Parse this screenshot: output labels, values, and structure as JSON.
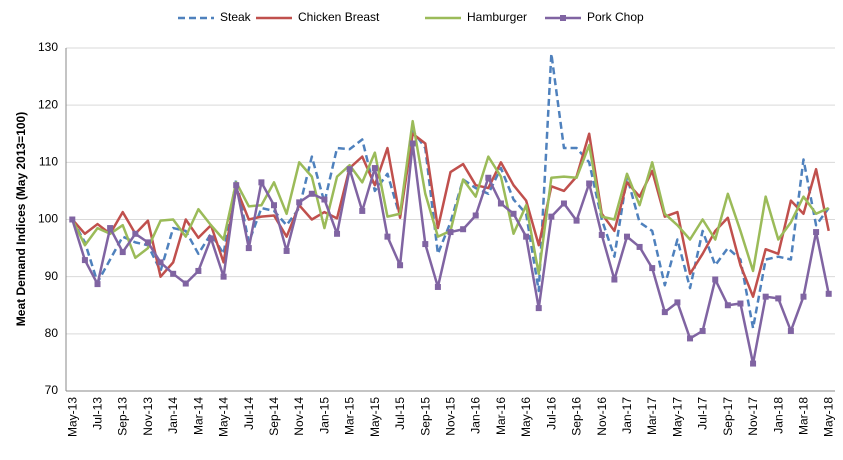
{
  "chart_data": {
    "type": "line",
    "y_label": "Meat Demand Indices (May 2013=100)",
    "categories": [
      "May-13",
      null,
      "Jul-13",
      null,
      "Sep-13",
      null,
      "Nov-13",
      null,
      "Jan-14",
      null,
      "Mar-14",
      null,
      "May-14",
      null,
      "Jul-14",
      null,
      "Sep-14",
      null,
      "Nov-14",
      null,
      "Jan-15",
      null,
      "Mar-15",
      null,
      "May-15",
      null,
      "Jul-15",
      null,
      "Sep-15",
      null,
      "Nov-15",
      null,
      "Jan-16",
      null,
      "Mar-16",
      null,
      "May-16",
      null,
      "Jul-16",
      null,
      "Sep-16",
      null,
      "Nov-16",
      null,
      "Jan-17",
      null,
      "Mar-17",
      null,
      "May-17",
      null,
      "Jul-17",
      null,
      "Sep-17",
      null,
      "Nov-17",
      null,
      "Jan-18",
      null,
      "Mar-18",
      null,
      "May-18"
    ],
    "series": [
      {
        "name": "Steak",
        "color": "#4f81bd",
        "dashed": true,
        "values": [
          100,
          96,
          89,
          93,
          97,
          96,
          95.5,
          91,
          98.5,
          98,
          94,
          97.5,
          94,
          107,
          96,
          102,
          101.5,
          99,
          102,
          111,
          103,
          112.5,
          112.3,
          114,
          105,
          108,
          100.5,
          115.5,
          112.5,
          94,
          99.5,
          107,
          105.5,
          104.5,
          109,
          103.5,
          101,
          87.5,
          129,
          112.5,
          112.5,
          110,
          100,
          93.5,
          107.5,
          99.5,
          98,
          88.5,
          96.5,
          88,
          98,
          92,
          95,
          93,
          81,
          93,
          93.5,
          93,
          110.5,
          99,
          102
        ]
      },
      {
        "name": "Chicken Breast",
        "color": "#c0504d",
        "values": [
          100,
          97.5,
          99.2,
          97.5,
          101.3,
          97.5,
          99.8,
          90,
          92.5,
          100,
          96.8,
          99,
          92.5,
          105.5,
          100,
          100.5,
          100.7,
          97,
          102.5,
          100,
          101.3,
          100.2,
          109,
          111,
          106,
          112.5,
          100.3,
          115,
          113.3,
          98.5,
          108.3,
          109.7,
          106,
          105.5,
          110,
          106,
          103.3,
          95.5,
          105.8,
          105,
          107.5,
          115,
          101,
          98,
          106.5,
          104,
          108.5,
          100.5,
          101.3,
          90.5,
          94,
          98,
          100.3,
          92,
          86.5,
          94.8,
          94,
          103.3,
          101,
          108.8,
          98
        ]
      },
      {
        "name": "Hamburger",
        "color": "#9bbb59",
        "values": [
          100,
          95.5,
          98.5,
          97.5,
          99,
          93.3,
          95,
          99.8,
          100,
          97,
          101.8,
          99,
          96.5,
          106.5,
          102.3,
          102.5,
          106.5,
          101,
          110,
          107.5,
          98.5,
          107.5,
          109.5,
          106.5,
          111.7,
          100.5,
          101,
          117.2,
          104.5,
          97,
          98,
          107,
          104,
          111,
          107.5,
          97.5,
          102.5,
          90.5,
          107.3,
          107.5,
          107.3,
          113,
          100.5,
          100,
          108,
          102.5,
          110,
          101,
          99,
          96.5,
          100,
          96.5,
          104.5,
          98,
          91,
          104,
          96.5,
          99.5,
          104,
          101,
          102
        ]
      },
      {
        "name": "Pork Chop",
        "color": "#8064a2",
        "marker": "square",
        "values": [
          100,
          92.9,
          88.7,
          98.5,
          94.3,
          97.5,
          96,
          92.5,
          90.5,
          88.8,
          91,
          96.7,
          90,
          106,
          95,
          106.5,
          102.5,
          94.5,
          103,
          104.5,
          103.5,
          97.5,
          108.8,
          101.5,
          109,
          97,
          92,
          113.3,
          95.7,
          88.2,
          97.8,
          98.3,
          100.7,
          107.3,
          102.8,
          101,
          97,
          84.5,
          100.5,
          102.8,
          99.8,
          106.3,
          97.3,
          89.5,
          97,
          95.2,
          91.5,
          83.8,
          85.5,
          79.2,
          80.5,
          89.5,
          85,
          85.3,
          74.8,
          86.5,
          86.2,
          80.5,
          86.5,
          97.8,
          87
        ]
      }
    ],
    "ylim": [
      70,
      130
    ],
    "yticks": [
      70,
      80,
      90,
      100,
      110,
      120,
      130
    ],
    "grid": true,
    "legend": "top"
  }
}
